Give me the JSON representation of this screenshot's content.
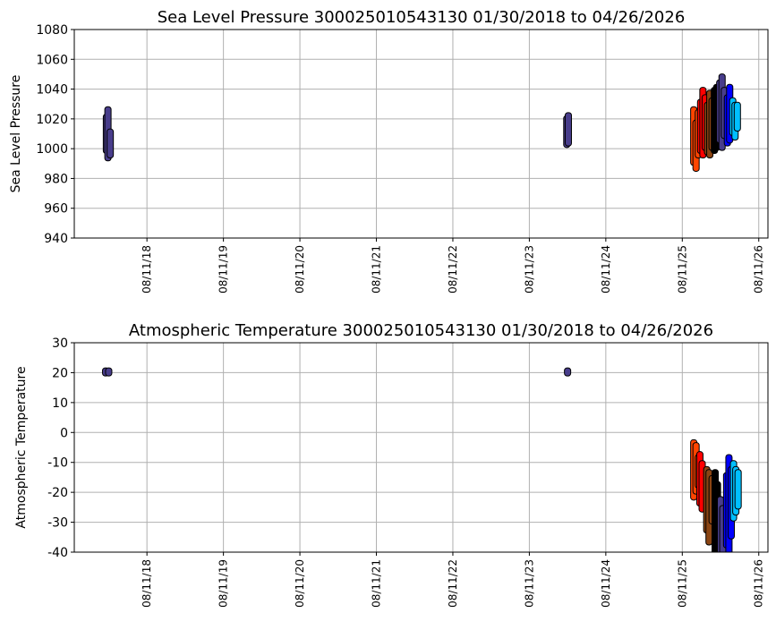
{
  "chart_data": [
    {
      "type": "scatter",
      "title": "Sea Level Pressure 300025010543130  01/30/2018 to 04/26/2026",
      "xlabel": "",
      "ylabel": "Sea Level Pressure",
      "ylim": [
        940,
        1080
      ],
      "yticks": [
        940,
        960,
        980,
        1000,
        1020,
        1040,
        1060,
        1080
      ],
      "xlim": [
        2017.66,
        2026.73
      ],
      "xticks": [
        2018.61,
        2019.61,
        2020.61,
        2021.61,
        2022.61,
        2023.61,
        2024.61,
        2025.61,
        2026.61
      ],
      "xtick_labels": [
        "08/11/18",
        "08/11/19",
        "08/11/20",
        "08/11/21",
        "08/11/22",
        "08/11/23",
        "08/11/24",
        "08/11/25",
        "08/11/26"
      ],
      "grid": true,
      "series": [
        {
          "name": "darkslateblue-2018",
          "color": "#483d8b",
          "points": [
            [
              2018.08,
              998,
              1022
            ],
            [
              2018.1,
              993,
              1027
            ],
            [
              2018.13,
              995,
              1012
            ]
          ]
        },
        {
          "name": "darkslateblue-2023",
          "color": "#483d8b",
          "points": [
            [
              2024.1,
              1002,
              1021
            ],
            [
              2024.12,
              1003,
              1023
            ]
          ]
        },
        {
          "name": "orangered",
          "color": "#ff4500",
          "points": [
            [
              2025.76,
              990,
              1027
            ],
            [
              2025.79,
              986,
              1018
            ],
            [
              2025.82,
              995,
              1025
            ]
          ]
        },
        {
          "name": "red",
          "color": "#ff0000",
          "points": [
            [
              2025.85,
              998,
              1032
            ],
            [
              2025.88,
              995,
              1040
            ],
            [
              2025.91,
              1000,
              1035
            ]
          ]
        },
        {
          "name": "saddlebrown",
          "color": "#8b4513",
          "points": [
            [
              2025.94,
              997,
              1030
            ],
            [
              2025.97,
              995,
              1038
            ],
            [
              2026.0,
              1000,
              1033
            ]
          ]
        },
        {
          "name": "black",
          "color": "#000000",
          "points": [
            [
              2026.03,
              998,
              1040
            ],
            [
              2026.06,
              1000,
              1042
            ]
          ]
        },
        {
          "name": "darkslateblue",
          "color": "#483d8b",
          "points": [
            [
              2026.1,
              1005,
              1045
            ],
            [
              2026.13,
              1000,
              1049
            ],
            [
              2026.16,
              1008,
              1040
            ]
          ]
        },
        {
          "name": "blue",
          "color": "#0000ff",
          "points": [
            [
              2026.2,
              1003,
              1035
            ],
            [
              2026.23,
              1005,
              1042
            ]
          ]
        },
        {
          "name": "deepskyblue",
          "color": "#00bfff",
          "points": [
            [
              2026.27,
              1010,
              1033
            ],
            [
              2026.3,
              1007,
              1030
            ],
            [
              2026.33,
              1013,
              1030
            ]
          ]
        }
      ]
    },
    {
      "type": "scatter",
      "title": "Atmospheric Temperature 300025010543130  01/30/2018 to 04/26/2026",
      "xlabel": "",
      "ylabel": "Atmospheric Temperature",
      "ylim": [
        -40,
        30
      ],
      "yticks": [
        -40,
        -30,
        -20,
        -10,
        0,
        10,
        20,
        30
      ],
      "xlim": [
        2017.66,
        2026.73
      ],
      "xticks": [
        2018.61,
        2019.61,
        2020.61,
        2021.61,
        2022.61,
        2023.61,
        2024.61,
        2025.61,
        2026.61
      ],
      "xtick_labels": [
        "08/11/18",
        "08/11/19",
        "08/11/20",
        "08/11/21",
        "08/11/22",
        "08/11/23",
        "08/11/24",
        "08/11/25",
        "08/11/26"
      ],
      "grid": true,
      "series": [
        {
          "name": "darkslateblue-2018",
          "color": "#483d8b",
          "points": [
            [
              2018.07,
              19.5,
              21
            ],
            [
              2018.11,
              19.5,
              21
            ]
          ]
        },
        {
          "name": "darkslateblue-2023",
          "color": "#483d8b",
          "points": [
            [
              2024.11,
              19.5,
              21
            ]
          ]
        },
        {
          "name": "orangered",
          "color": "#ff4500",
          "points": [
            [
              2025.76,
              -22,
              -3
            ],
            [
              2025.79,
              -20,
              -4
            ],
            [
              2025.82,
              -18,
              -8
            ]
          ]
        },
        {
          "name": "red",
          "color": "#ff0000",
          "points": [
            [
              2025.84,
              -24,
              -7
            ],
            [
              2025.87,
              -26,
              -10
            ]
          ]
        },
        {
          "name": "saddlebrown",
          "color": "#8b4513",
          "points": [
            [
              2025.93,
              -33,
              -12
            ],
            [
              2025.96,
              -37,
              -13
            ],
            [
              2026.0,
              -30,
              -15
            ]
          ]
        },
        {
          "name": "black",
          "color": "#000000",
          "points": [
            [
              2026.04,
              -40,
              -13
            ],
            [
              2026.07,
              -40,
              -17
            ]
          ]
        },
        {
          "name": "darkslateblue",
          "color": "#483d8b",
          "points": [
            [
              2026.11,
              -40,
              -22
            ],
            [
              2026.14,
              -40,
              -25
            ]
          ]
        },
        {
          "name": "blue",
          "color": "#0000ff",
          "points": [
            [
              2026.19,
              -38,
              -14
            ],
            [
              2026.22,
              -40,
              -8
            ],
            [
              2026.25,
              -35,
              -12
            ]
          ]
        },
        {
          "name": "deepskyblue",
          "color": "#00bfff",
          "points": [
            [
              2026.28,
              -29,
              -10
            ],
            [
              2026.31,
              -27,
              -12
            ],
            [
              2026.34,
              -25,
              -13
            ]
          ]
        }
      ]
    }
  ]
}
